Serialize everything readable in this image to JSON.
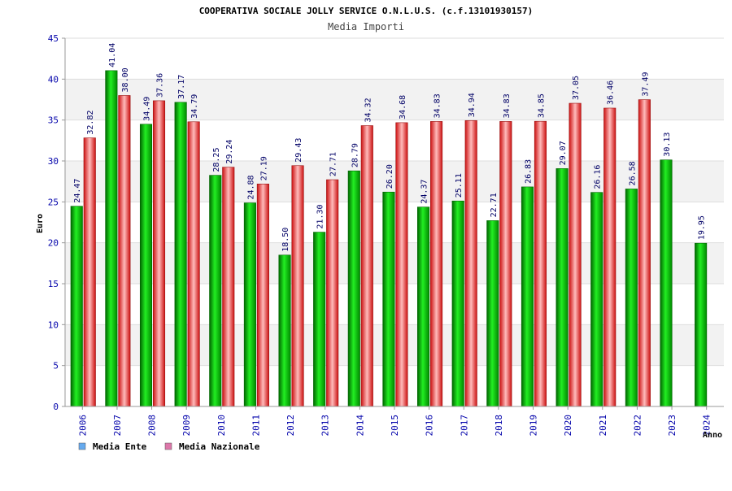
{
  "chart_data": {
    "type": "bar",
    "title": "COOPERATIVA SOCIALE JOLLY SERVICE O.N.L.U.S. (c.f.13101930157)",
    "subtitle": "Media Importi",
    "xlabel": "Anno",
    "ylabel": "Euro",
    "ylim": [
      0,
      45
    ],
    "yticks": [
      "0",
      "5",
      "10",
      "15",
      "20",
      "25",
      "30",
      "35",
      "40",
      "45"
    ],
    "grid": true,
    "legend_position": "bottom-left",
    "categories": [
      "2006",
      "2007",
      "2008",
      "2009",
      "2010",
      "2011",
      "2012",
      "2013",
      "2014",
      "2015",
      "2016",
      "2017",
      "2018",
      "2019",
      "2020",
      "2021",
      "2022",
      "2023",
      "2024"
    ],
    "series": [
      {
        "name": "Media Ente",
        "color": "#00aa00",
        "legend_color": "#66aaee",
        "values": [
          24.47,
          41.04,
          34.49,
          37.17,
          28.25,
          24.88,
          18.5,
          21.3,
          28.79,
          26.2,
          24.37,
          25.11,
          22.71,
          26.83,
          29.07,
          26.16,
          26.58,
          30.13,
          19.95
        ],
        "labels": [
          "24.47",
          "41.04",
          "34.49",
          "37.17",
          "28.25",
          "24.88",
          "18.50",
          "21.30",
          "28.79",
          "26.20",
          "24.37",
          "25.11",
          "22.71",
          "26.83",
          "29.07",
          "26.16",
          "26.58",
          "30.13",
          "19.95"
        ]
      },
      {
        "name": "Media Nazionale",
        "color": "#dd2222",
        "legend_color": "#dd77aa",
        "values": [
          32.82,
          38.0,
          37.36,
          34.79,
          29.24,
          27.19,
          29.43,
          27.71,
          34.32,
          34.68,
          34.83,
          34.94,
          34.83,
          34.85,
          37.05,
          36.46,
          37.49,
          null,
          null
        ],
        "labels": [
          "32.82",
          "38.00",
          "37.36",
          "34.79",
          "29.24",
          "27.19",
          "29.43",
          "27.71",
          "34.32",
          "34.68",
          "34.83",
          "34.94",
          "34.83",
          "34.85",
          "37.05",
          "36.46",
          "37.49",
          "",
          ""
        ]
      }
    ]
  }
}
